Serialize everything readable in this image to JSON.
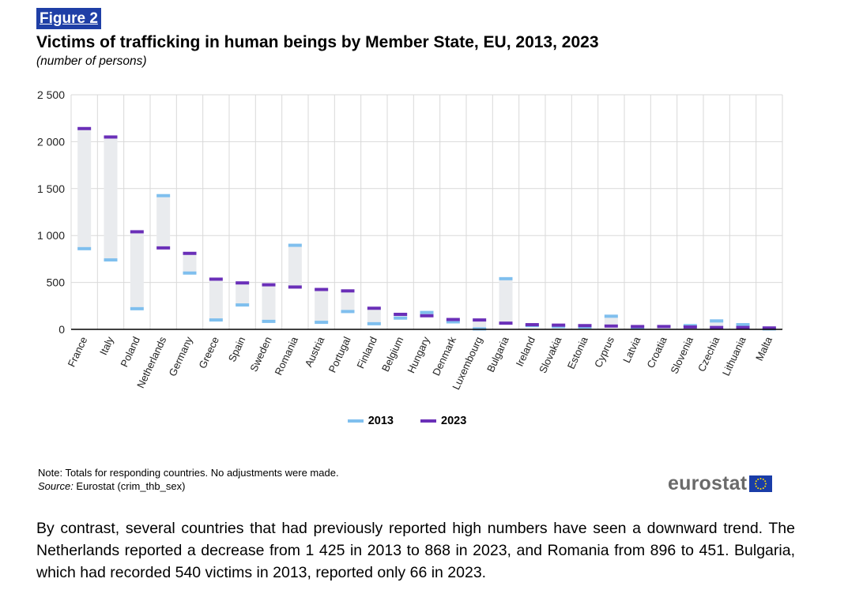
{
  "figure_label": "Figure 2",
  "title": "Victims of trafficking in human beings by Member State, EU, 2013, 2023",
  "subtitle": "(number of persons)",
  "chart_data": {
    "type": "range-dot",
    "title": "Victims of trafficking in human beings by Member State, EU, 2013, 2023",
    "ylabel": "",
    "xlabel": "",
    "ylim": [
      0,
      2500
    ],
    "yticks": [
      0,
      500,
      1000,
      1500,
      2000,
      2500
    ],
    "ytick_labels": [
      "0",
      "500",
      "1 000",
      "1 500",
      "2 000",
      "2 500"
    ],
    "grid": true,
    "legend_position": "bottom-center",
    "categories": [
      "France",
      "Italy",
      "Poland",
      "Netherlands",
      "Germany",
      "Greece",
      "Spain",
      "Sweden",
      "Romania",
      "Austria",
      "Portugal",
      "Finland",
      "Belgium",
      "Hungary",
      "Denmark",
      "Luxembourg",
      "Bulgaria",
      "Ireland",
      "Slovakia",
      "Estonia",
      "Cyprus",
      "Latvia",
      "Croatia",
      "Slovenia",
      "Czechia",
      "Lithuania",
      "Malta"
    ],
    "series": [
      {
        "name": "2013",
        "color": "#7fbfee",
        "values": [
          860,
          740,
          220,
          1425,
          600,
          100,
          260,
          85,
          896,
          75,
          190,
          60,
          120,
          180,
          80,
          5,
          540,
          40,
          30,
          25,
          140,
          20,
          30,
          40,
          90,
          50,
          5
        ]
      },
      {
        "name": "2023",
        "color": "#6a2fb8",
        "values": [
          2140,
          2050,
          1040,
          868,
          810,
          535,
          495,
          475,
          451,
          425,
          410,
          225,
          160,
          145,
          105,
          100,
          66,
          50,
          45,
          40,
          35,
          30,
          30,
          25,
          20,
          20,
          15
        ]
      }
    ]
  },
  "legend": [
    {
      "label": "2013",
      "color": "#7fbfee"
    },
    {
      "label": "2023",
      "color": "#6a2fb8"
    }
  ],
  "note": "Note: Totals for responding countries. No adjustments were made.",
  "source_label": "Source:",
  "source_text": " Eurostat (crim_thb_sex)",
  "logo_text": "eurostat",
  "body_text": "By contrast, several countries that had previously reported high numbers have seen a downward trend. The Netherlands reported a decrease from 1 425 in 2013 to 868 in 2023, and Romania from 896 to 451. Bulgaria, which had recorded 540 victims in 2013, reported only 66 in 2023."
}
